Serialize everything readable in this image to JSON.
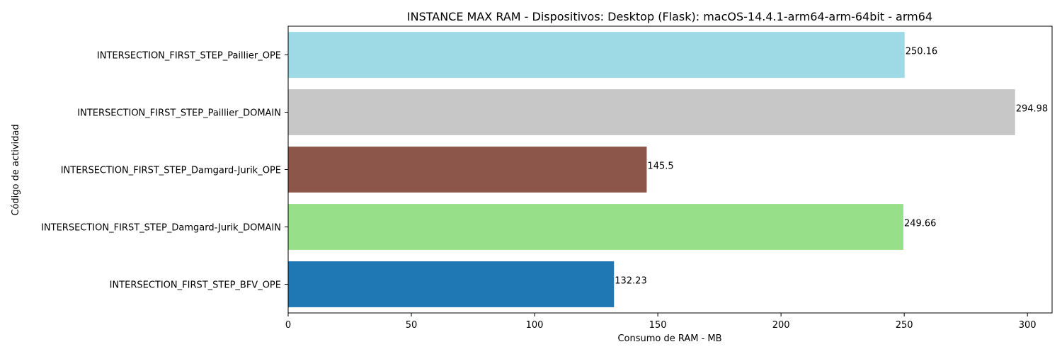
{
  "chart_data": {
    "type": "bar",
    "orientation": "horizontal",
    "title": "INSTANCE MAX RAM - Dispositivos: Desktop (Flask): macOS-14.4.1-arm64-arm-64bit - arm64",
    "xlabel": "Consumo de RAM - MB",
    "ylabel": "Código de actividad",
    "xlim": [
      0,
      310
    ],
    "x_ticks": [
      0,
      50,
      100,
      150,
      200,
      250,
      300
    ],
    "grid": false,
    "categories": [
      "INTERSECTION_FIRST_STEP_Paillier_OPE",
      "INTERSECTION_FIRST_STEP_Paillier_DOMAIN",
      "INTERSECTION_FIRST_STEP_Damgard-Jurik_OPE",
      "INTERSECTION_FIRST_STEP_Damgard-Jurik_DOMAIN",
      "INTERSECTION_FIRST_STEP_BFV_OPE"
    ],
    "values": [
      250.16,
      294.98,
      145.5,
      249.66,
      132.23
    ],
    "value_labels": [
      "250.16",
      "294.98",
      "145.5",
      "249.66",
      "132.23"
    ],
    "colors": [
      "#9edae5",
      "#c7c7c7",
      "#8c564b",
      "#98df8a",
      "#1f77b4"
    ]
  }
}
